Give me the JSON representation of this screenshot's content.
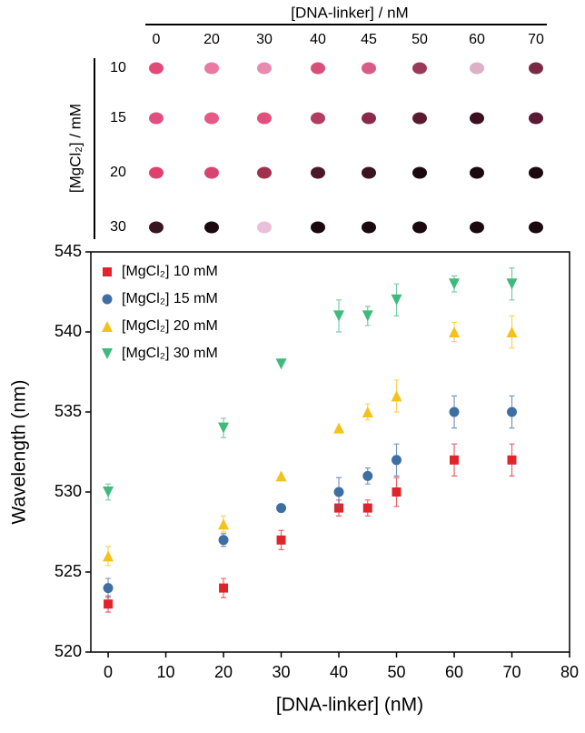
{
  "spot_array": {
    "column_title": "[DNA-linker] / nM",
    "columns": [
      "0",
      "20",
      "30",
      "40",
      "45",
      "50",
      "60",
      "70"
    ],
    "row_title": "[MgCl₂] / mM",
    "rows": [
      "10",
      "15",
      "20",
      "30"
    ]
  },
  "chart_data": {
    "type": "scatter",
    "x_label": "[DNA-linker]  (nM)",
    "y_label": "Wavelength (nm)",
    "x": [
      0,
      20,
      30,
      40,
      45,
      50,
      60,
      70
    ],
    "series": [
      {
        "name": "[MgCl₂] 10 mM",
        "color": "#e0242c",
        "marker": "square",
        "values": [
          523,
          524,
          527,
          529,
          529,
          530,
          532,
          532
        ],
        "errors": [
          0.5,
          0.6,
          0.6,
          0.5,
          0.5,
          0.9,
          1,
          1
        ]
      },
      {
        "name": "[MgCl₂] 15 mM",
        "color": "#3f6ea3",
        "marker": "circle",
        "values": [
          524,
          527,
          529,
          530,
          531,
          532,
          535,
          535
        ],
        "errors": [
          0.6,
          0.4,
          0.1,
          0.9,
          0.5,
          1,
          1,
          1
        ]
      },
      {
        "name": "[MgCl₂] 20 mM",
        "color": "#f4c21b",
        "marker": "triangle-up",
        "values": [
          526,
          528,
          531,
          534,
          535,
          536,
          540,
          540
        ],
        "errors": [
          0.6,
          0.5,
          0,
          0,
          0.5,
          1,
          0.6,
          1
        ]
      },
      {
        "name": "[MgCl₂] 30 mM",
        "color": "#3dbb7c",
        "marker": "triangle-down",
        "values": [
          530,
          534,
          538,
          541,
          541,
          542,
          543,
          543
        ],
        "errors": [
          0.5,
          0.6,
          0,
          1,
          0.6,
          1,
          0.5,
          1
        ]
      }
    ],
    "xlim": [
      -3,
      80
    ],
    "xticks": [
      0,
      10,
      20,
      30,
      40,
      50,
      60,
      70,
      80
    ],
    "ylim": [
      520,
      545
    ],
    "yticks": [
      520,
      525,
      530,
      535,
      540,
      545
    ],
    "legend": "upper left",
    "grid": false
  }
}
